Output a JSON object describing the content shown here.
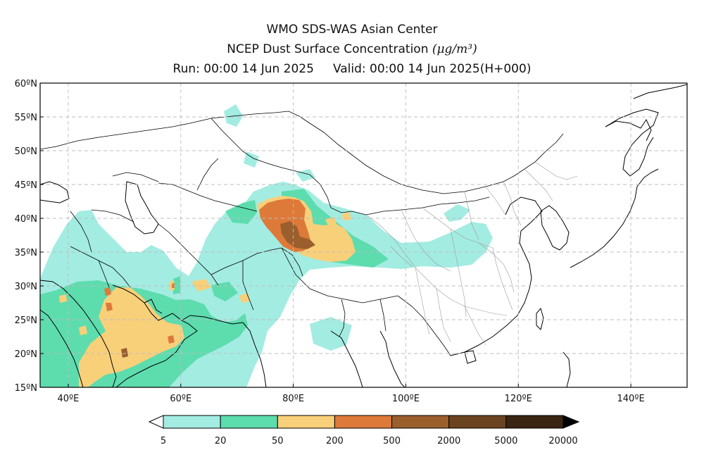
{
  "header": {
    "line1": "WMO SDS-WAS Asian Center",
    "line2": "NCEP Dust Surface Concentration",
    "units_text": "(μg/m³)",
    "line3": "Run: 00:00 14 Jun 2025     Valid: 00:00 14 Jun 2025(H+000)"
  },
  "map": {
    "lon_range": [
      35,
      150
    ],
    "lat_range": [
      15,
      60
    ],
    "lon_ticks": [
      {
        "value": 40,
        "label": "40ºE"
      },
      {
        "value": 60,
        "label": "60ºE"
      },
      {
        "value": 80,
        "label": "80ºE"
      },
      {
        "value": 100,
        "label": "100ºE"
      },
      {
        "value": 120,
        "label": "120ºE"
      },
      {
        "value": 140,
        "label": "140ºE"
      }
    ],
    "lat_ticks": [
      {
        "value": 15,
        "label": "15ºN"
      },
      {
        "value": 20,
        "label": "20ºN"
      },
      {
        "value": 25,
        "label": "25ºN"
      },
      {
        "value": 30,
        "label": "30ºN"
      },
      {
        "value": 35,
        "label": "35ºN"
      },
      {
        "value": 40,
        "label": "40ºN"
      },
      {
        "value": 45,
        "label": "45ºN"
      },
      {
        "value": 50,
        "label": "50ºN"
      },
      {
        "value": 55,
        "label": "55ºN"
      },
      {
        "value": 60,
        "label": "60ºN"
      }
    ],
    "grid": true
  },
  "colorbar": {
    "levels": [
      "5",
      "20",
      "50",
      "200",
      "500",
      "2000",
      "5000",
      "20000"
    ],
    "colors": [
      "#a3ece2",
      "#5ddcae",
      "#f8d07a",
      "#dd7a3a",
      "#9a5f2d",
      "#6b4320",
      "#3a2412"
    ],
    "lower_extend_color": "#ffffff",
    "upper_extend_color": "#000000"
  }
}
